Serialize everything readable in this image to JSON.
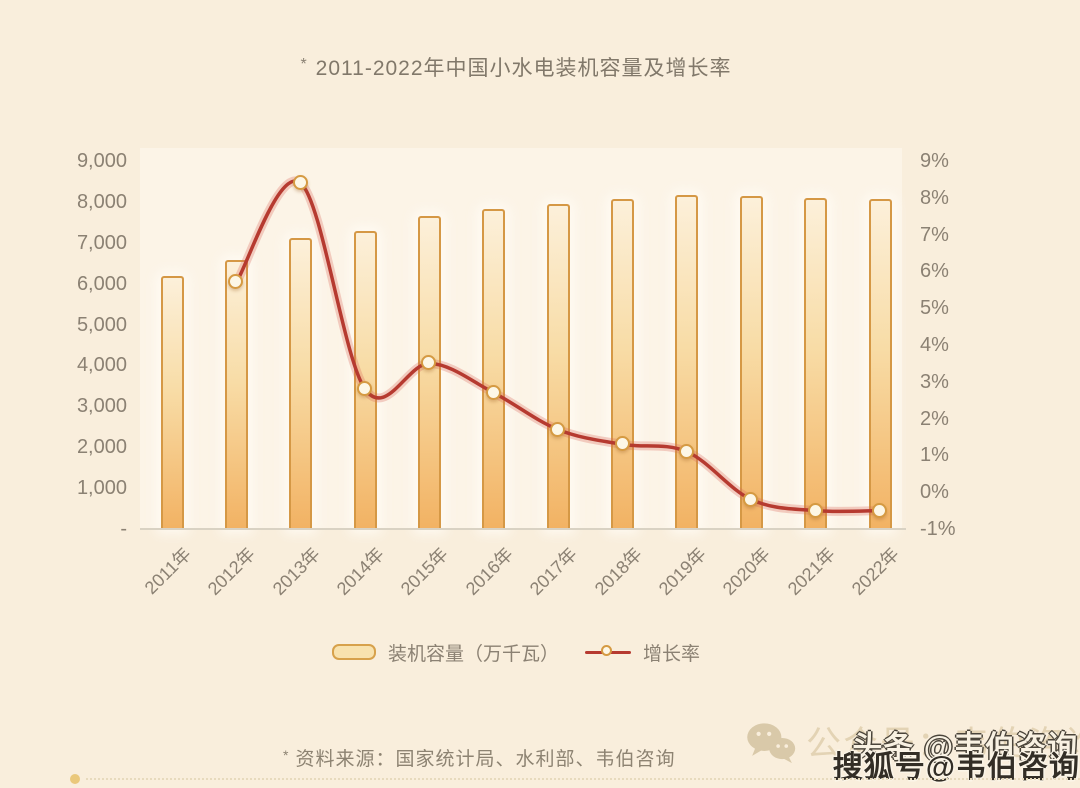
{
  "page": {
    "background": "#f9eedc"
  },
  "title": {
    "mark": "*",
    "text": "2011-2022年中国小水电装机容量及增长率"
  },
  "chart_data": {
    "type": "bar+line combo",
    "title": "2011-2022年中国小水电装机容量及增长率",
    "categories": [
      "2011年",
      "2012年",
      "2013年",
      "2014年",
      "2015年",
      "2016年",
      "2017年",
      "2018年",
      "2019年",
      "2020年",
      "2021年",
      "2022年"
    ],
    "series": [
      {
        "name": "装机容量（万千瓦）",
        "type": "bar",
        "axis": "left",
        "values": [
          6200,
          6570,
          7110,
          7300,
          7650,
          7820,
          7940,
          8060,
          8170,
          8140,
          8100,
          8080
        ],
        "fill_color": "#f2b263",
        "border_color": "#d59845"
      },
      {
        "name": "增长率",
        "type": "line",
        "axis": "right",
        "values": [
          null,
          5.7,
          8.4,
          2.8,
          3.5,
          2.7,
          1.7,
          1.3,
          1.1,
          -0.2,
          -0.5,
          -0.5
        ],
        "line_color": "#b63a30",
        "marker_fill": "#fdf7e6",
        "marker_border": "#d59a42"
      }
    ],
    "left_axis": {
      "min": 0,
      "max": 9000,
      "ticks": [
        "9,000",
        "8,000",
        "7,000",
        "6,000",
        "5,000",
        "4,000",
        "3,000",
        "2,000",
        "1,000",
        "-"
      ]
    },
    "right_axis": {
      "min": -1,
      "max": 9,
      "ticks": [
        "9%",
        "8%",
        "7%",
        "6%",
        "5%",
        "4%",
        "3%",
        "2%",
        "1%",
        "0%",
        "-1%"
      ]
    },
    "grid": "off",
    "legend_position": "bottom-center"
  },
  "legend": {
    "bar_label": "装机容量（万千瓦）",
    "line_label": "增长率"
  },
  "footer": {
    "mark": "*",
    "source": "资料来源：国家统计局、水利部、韦伯咨询"
  },
  "watermarks": {
    "wechat": "公众号：韦伯咨询",
    "toutiao": "头条 @韦伯咨询",
    "sohu": "搜狐号@韦伯咨询"
  }
}
